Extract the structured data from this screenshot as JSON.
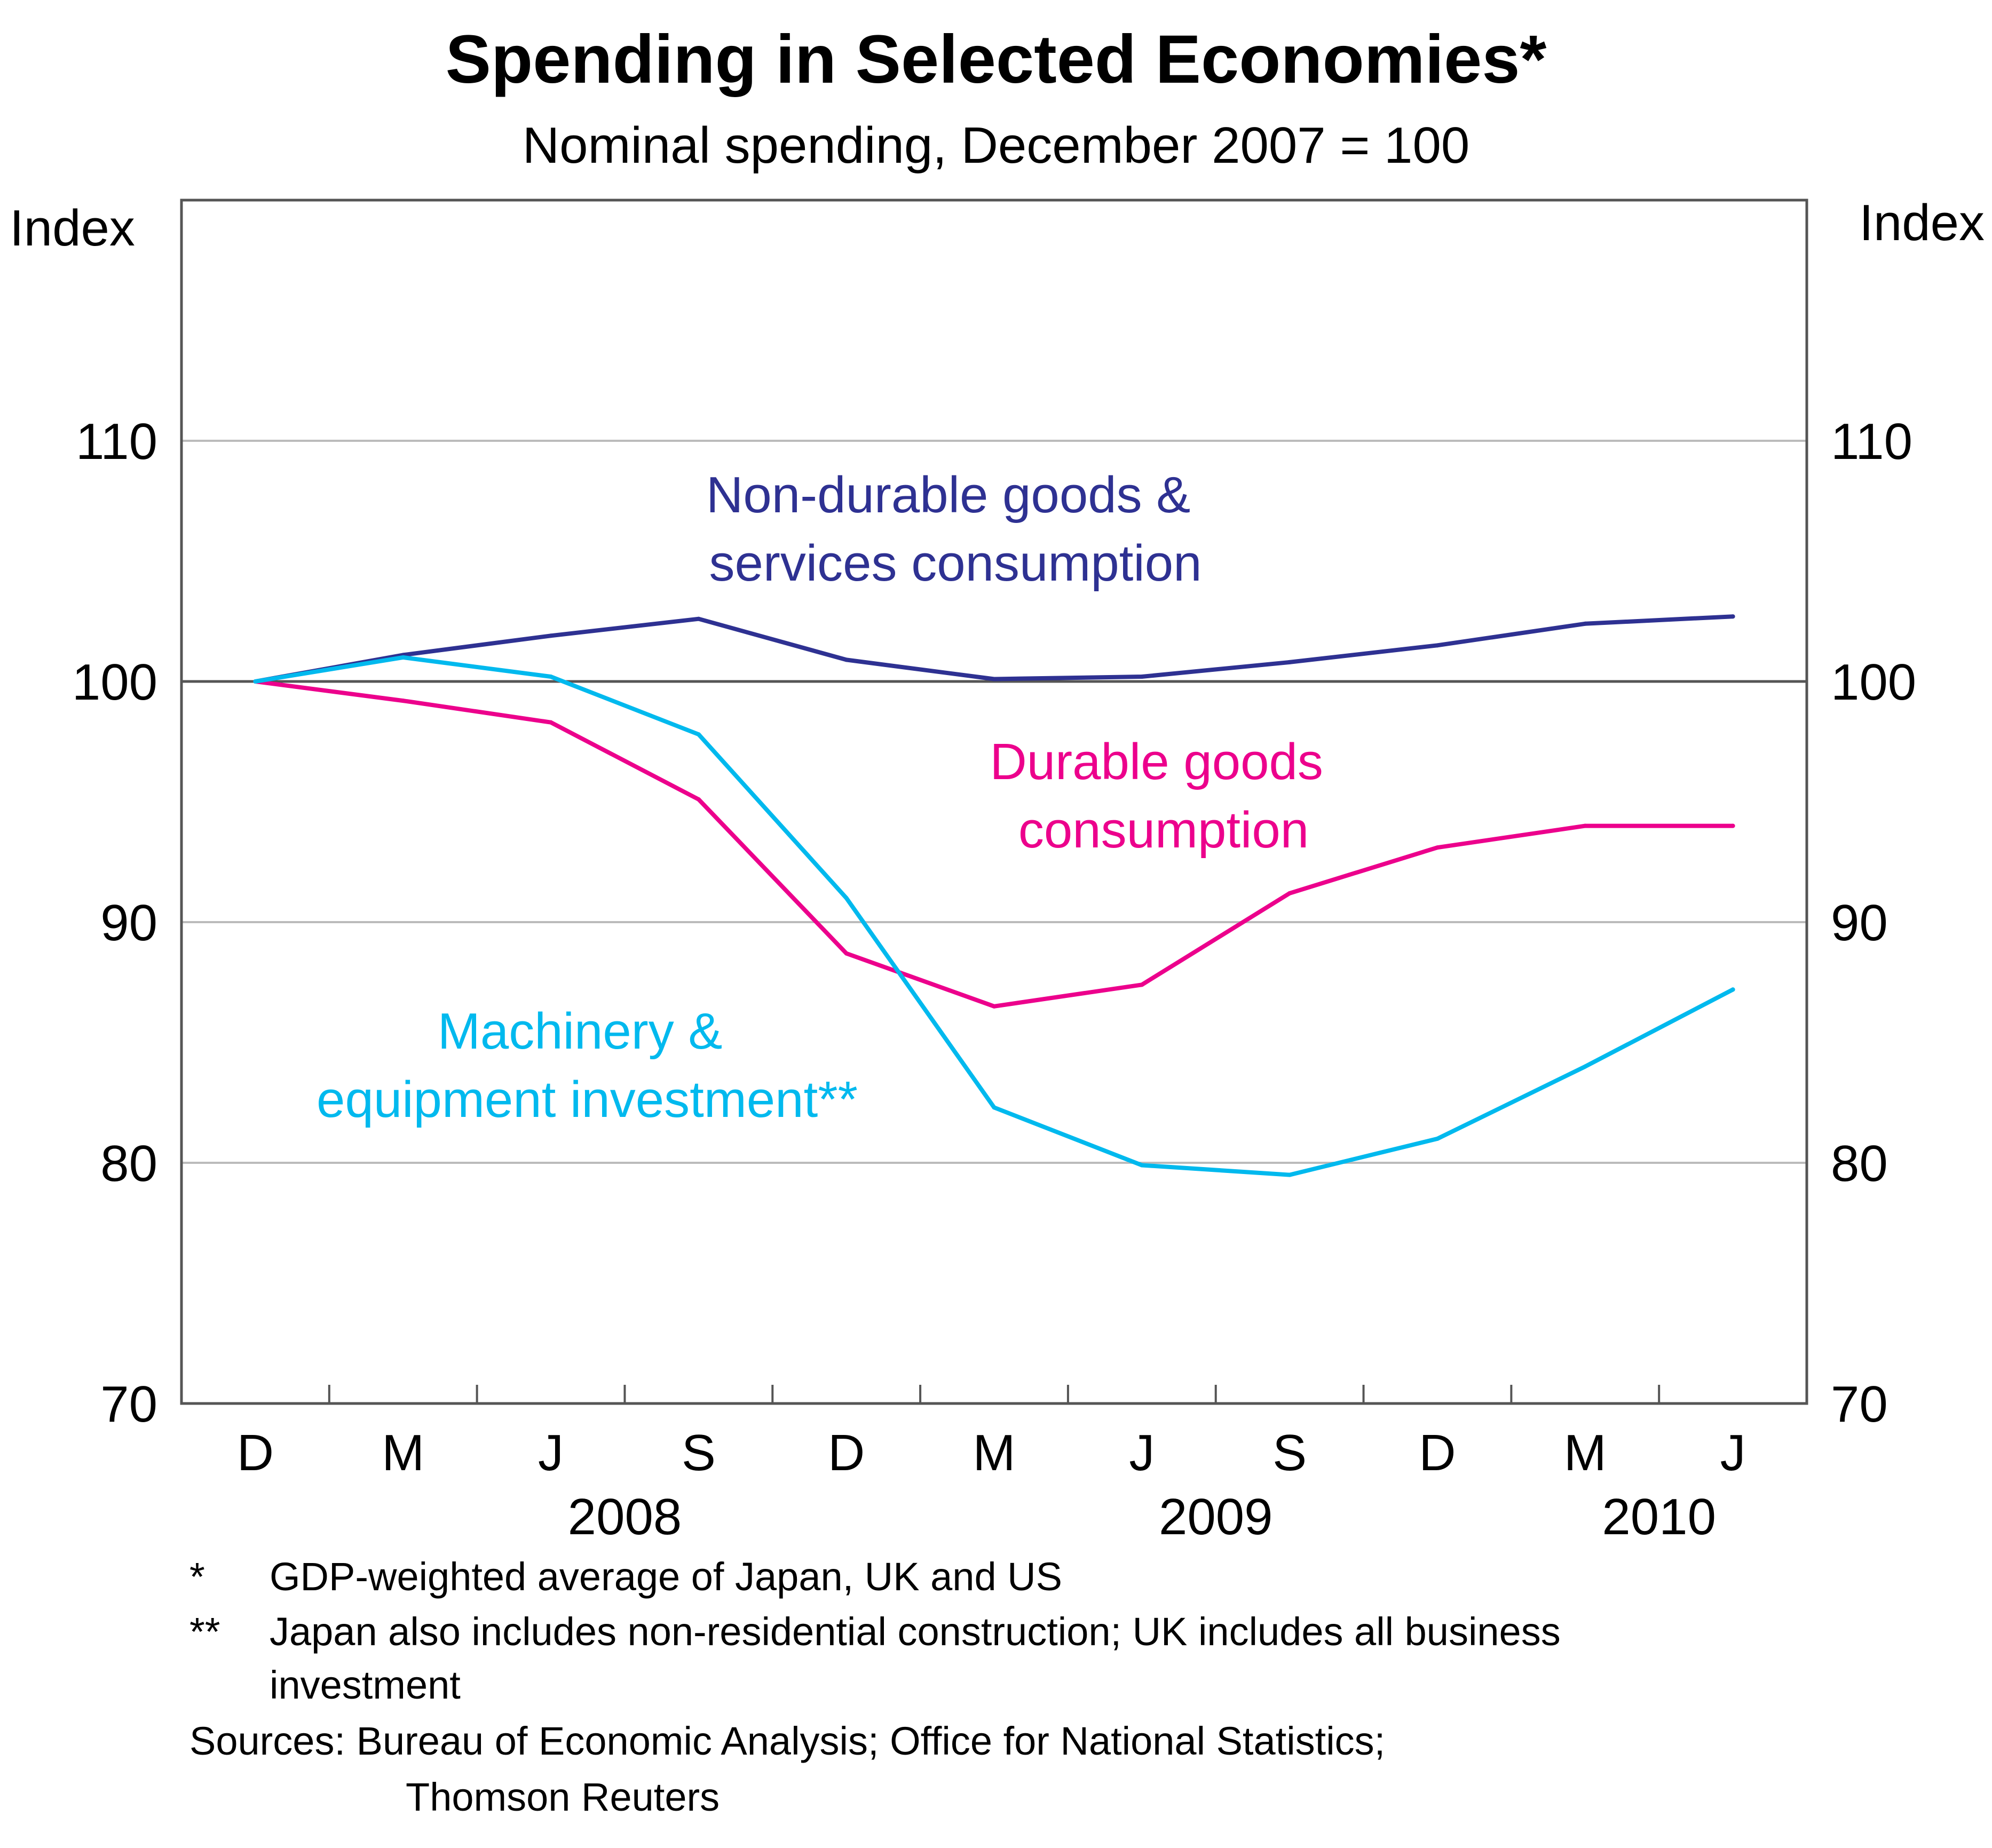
{
  "chart_data": {
    "type": "line",
    "title": "Spending in Selected Economies*",
    "subtitle": "Nominal spending, December 2007 = 100",
    "ylabel_left": "Index",
    "ylabel_right": "Index",
    "ylim": [
      70,
      120
    ],
    "yticks": [
      70,
      80,
      90,
      100,
      110
    ],
    "grid": true,
    "reference_line": 100,
    "x": [
      "2007-12",
      "2008-03",
      "2008-06",
      "2008-09",
      "2008-12",
      "2009-03",
      "2009-06",
      "2009-09",
      "2009-12",
      "2010-03",
      "2010-06"
    ],
    "x_tick_labels": [
      "D",
      "M",
      "J",
      "S",
      "D",
      "M",
      "J",
      "S",
      "D",
      "M",
      "J"
    ],
    "x_year_labels": [
      {
        "label": "2008",
        "index": 2.5
      },
      {
        "label": "2009",
        "index": 6.5
      },
      {
        "label": "2010",
        "index": 9.5
      }
    ],
    "series": [
      {
        "name": "Non-durable goods & services consumption",
        "label_lines": [
          "Non-durable goods &",
          "services consumption"
        ],
        "color": "#2E3192",
        "values": [
          100.0,
          101.1,
          101.9,
          102.6,
          100.9,
          100.1,
          100.2,
          100.8,
          101.5,
          102.4,
          102.7
        ]
      },
      {
        "name": "Durable goods consumption",
        "label_lines": [
          "Durable goods",
          "consumption"
        ],
        "color": "#EC008C",
        "values": [
          100.0,
          99.2,
          98.3,
          95.1,
          88.7,
          86.5,
          87.4,
          91.2,
          93.1,
          94.0,
          94.0
        ]
      },
      {
        "name": "Machinery & equipment investment**",
        "label_lines": [
          "Machinery &",
          "equipment investment**"
        ],
        "color": "#00B9EE",
        "values": [
          100.0,
          101.0,
          100.2,
          97.8,
          91.0,
          82.3,
          79.9,
          79.5,
          81.0,
          84.0,
          87.2
        ]
      }
    ]
  },
  "notes": {
    "star_marker": "*",
    "star_text": "GDP-weighted average of Japan, UK and US",
    "dstar_marker": "**",
    "dstar_text_line1": "Japan also includes non-residential construction; UK includes all business",
    "dstar_text_line2": "investment",
    "sources_line1": "Sources: Bureau of Economic Analysis; Office for National Statistics;",
    "sources_line2": "Thomson Reuters"
  },
  "colors": {
    "axis": "#555555",
    "grid": "#bbbbbb",
    "reference": "#555555"
  }
}
